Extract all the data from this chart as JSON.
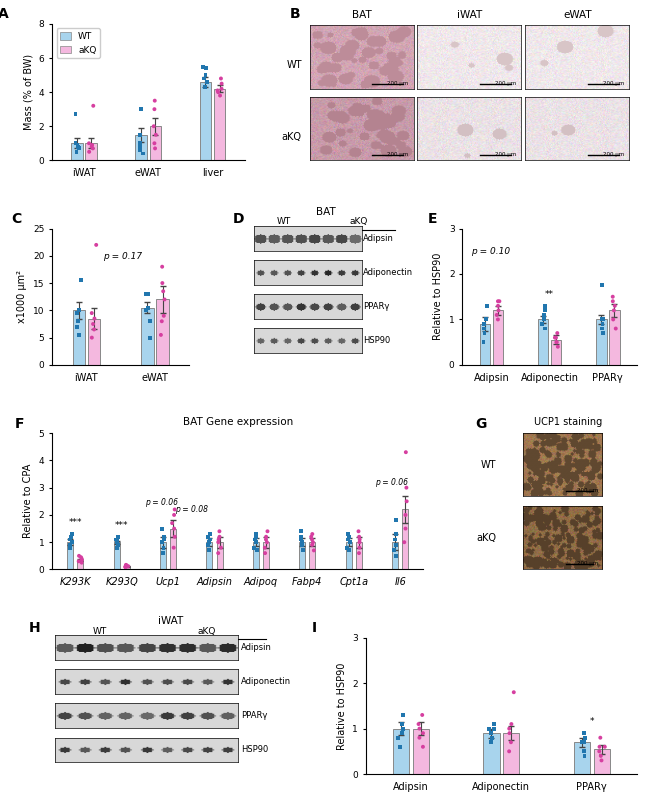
{
  "panel_A": {
    "categories": [
      "iWAT",
      "eWAT",
      "liver"
    ],
    "wt_means": [
      1.0,
      1.5,
      4.6
    ],
    "wt_errs": [
      0.3,
      0.4,
      0.3
    ],
    "aKQ_means": [
      1.0,
      2.0,
      4.2
    ],
    "aKQ_errs": [
      0.3,
      0.5,
      0.2
    ],
    "wt_points": [
      [
        0.5,
        0.7,
        0.8,
        0.9,
        1.0,
        2.7
      ],
      [
        0.4,
        0.6,
        0.8,
        1.0,
        1.5,
        3.0
      ],
      [
        4.3,
        4.6,
        4.8,
        5.0,
        5.4,
        5.5
      ]
    ],
    "aKQ_points": [
      [
        0.5,
        0.7,
        0.8,
        0.9,
        1.0,
        3.2
      ],
      [
        0.7,
        1.0,
        1.5,
        2.0,
        3.0,
        3.5
      ],
      [
        3.8,
        4.0,
        4.1,
        4.2,
        4.5,
        4.8
      ]
    ],
    "ylabel": "Mass (% of BW)",
    "ylim": [
      0,
      8
    ],
    "yticks": [
      0,
      2,
      4,
      6,
      8
    ]
  },
  "panel_C": {
    "categories": [
      "iWAT",
      "eWAT"
    ],
    "wt_means": [
      10.0,
      10.5
    ],
    "wt_errs": [
      1.5,
      1.0
    ],
    "aKQ_means": [
      8.5,
      12.0
    ],
    "aKQ_errs": [
      2.0,
      2.5
    ],
    "wt_points": [
      [
        5.5,
        7.0,
        8.0,
        9.5,
        10.0,
        15.5
      ],
      [
        5.0,
        8.0,
        10.0,
        10.5,
        13.0,
        13.0
      ]
    ],
    "aKQ_points": [
      [
        5.0,
        6.5,
        7.5,
        8.5,
        9.5,
        22.0
      ],
      [
        5.5,
        8.0,
        9.0,
        12.0,
        13.5,
        15.0,
        18.0
      ]
    ],
    "ylabel": "x1000 μm²",
    "ylim": [
      0,
      25
    ],
    "yticks": [
      0,
      5,
      10,
      15,
      20,
      25
    ],
    "p_value": "p = 0.17"
  },
  "panel_E": {
    "categories": [
      "Adipsin",
      "Adiponectin",
      "PPARγ"
    ],
    "wt_means": [
      0.9,
      1.0,
      1.0
    ],
    "wt_errs": [
      0.15,
      0.08,
      0.1
    ],
    "aKQ_means": [
      1.2,
      0.55,
      1.2
    ],
    "aKQ_errs": [
      0.1,
      0.1,
      0.15
    ],
    "wt_points": [
      [
        0.5,
        0.7,
        0.8,
        0.9,
        1.0,
        1.3
      ],
      [
        0.8,
        0.9,
        1.0,
        1.1,
        1.2,
        1.3
      ],
      [
        0.7,
        0.8,
        0.9,
        1.0,
        1.0,
        1.75
      ]
    ],
    "aKQ_points": [
      [
        1.0,
        1.1,
        1.2,
        1.3,
        1.4,
        1.4
      ],
      [
        0.4,
        0.5,
        0.5,
        0.6,
        0.6,
        0.7
      ],
      [
        0.8,
        1.0,
        1.2,
        1.3,
        1.4,
        1.5
      ]
    ],
    "ylabel": "Relative to HSP90",
    "ylim": [
      0,
      3
    ],
    "yticks": [
      0,
      1,
      2,
      3
    ],
    "significance": [
      "",
      "**",
      ""
    ]
  },
  "panel_F": {
    "categories": [
      "K293K",
      "K293Q",
      "Ucp1",
      "Adipsin",
      "Adipoq",
      "Fabp4",
      "Cpt1a",
      "Il6"
    ],
    "wt_means": [
      1.0,
      1.0,
      1.0,
      1.0,
      1.0,
      1.0,
      1.0,
      1.0
    ],
    "wt_errs": [
      0.1,
      0.05,
      0.2,
      0.15,
      0.15,
      0.15,
      0.15,
      0.3
    ],
    "aKQ_means": [
      0.35,
      0.12,
      1.5,
      1.0,
      1.0,
      1.0,
      1.0,
      2.2
    ],
    "aKQ_errs": [
      0.05,
      0.02,
      0.3,
      0.2,
      0.2,
      0.15,
      0.2,
      0.5
    ],
    "wt_points": [
      [
        0.8,
        0.9,
        1.0,
        1.1,
        1.2,
        1.3
      ],
      [
        0.8,
        0.9,
        1.0,
        1.1,
        1.1,
        1.2
      ],
      [
        0.6,
        0.8,
        1.0,
        1.1,
        1.2,
        1.5
      ],
      [
        0.7,
        0.9,
        1.0,
        1.1,
        1.2,
        1.3
      ],
      [
        0.7,
        0.8,
        1.0,
        1.1,
        1.2,
        1.3
      ],
      [
        0.7,
        0.9,
        1.0,
        1.1,
        1.2,
        1.4
      ],
      [
        0.7,
        0.8,
        1.0,
        1.1,
        1.2,
        1.3
      ],
      [
        0.5,
        0.7,
        0.9,
        1.1,
        1.3,
        1.8
      ]
    ],
    "aKQ_points": [
      [
        0.25,
        0.3,
        0.35,
        0.4,
        0.45,
        0.5
      ],
      [
        0.08,
        0.1,
        0.12,
        0.14,
        0.15,
        0.17
      ],
      [
        0.8,
        1.2,
        1.5,
        1.7,
        2.0,
        2.2
      ],
      [
        0.6,
        0.8,
        1.0,
        1.1,
        1.2,
        1.4
      ],
      [
        0.6,
        0.8,
        1.0,
        1.1,
        1.2,
        1.4
      ],
      [
        0.7,
        0.9,
        1.0,
        1.1,
        1.2,
        1.3
      ],
      [
        0.6,
        0.8,
        1.0,
        1.1,
        1.2,
        1.4
      ],
      [
        1.0,
        1.5,
        2.0,
        2.5,
        3.0,
        4.3
      ]
    ],
    "ylabel": "Relative to CPA",
    "title": "BAT Gene expression",
    "ylim": [
      0,
      5
    ],
    "yticks": [
      0,
      1,
      2,
      3,
      4,
      5
    ],
    "significance": [
      "***",
      "***",
      "",
      "",
      "",
      "",
      "",
      ""
    ]
  },
  "panel_I": {
    "categories": [
      "Adipsin",
      "Adiponectin",
      "PPARγ"
    ],
    "wt_means": [
      1.0,
      0.9,
      0.7
    ],
    "wt_errs": [
      0.15,
      0.1,
      0.1
    ],
    "aKQ_means": [
      1.0,
      0.9,
      0.55
    ],
    "aKQ_errs": [
      0.15,
      0.15,
      0.1
    ],
    "wt_points": [
      [
        0.6,
        0.8,
        0.9,
        1.0,
        1.1,
        1.3
      ],
      [
        0.7,
        0.8,
        0.9,
        1.0,
        1.0,
        1.1
      ],
      [
        0.4,
        0.5,
        0.7,
        0.7,
        0.8,
        0.9
      ]
    ],
    "aKQ_points": [
      [
        0.6,
        0.8,
        0.9,
        1.0,
        1.1,
        1.3
      ],
      [
        0.5,
        0.7,
        0.9,
        1.0,
        1.1,
        1.8
      ],
      [
        0.3,
        0.4,
        0.5,
        0.6,
        0.6,
        0.8
      ]
    ],
    "ylabel": "Relative to HSP90",
    "ylim": [
      0,
      3
    ],
    "yticks": [
      0,
      1,
      2,
      3
    ],
    "significance": [
      "",
      "",
      "*"
    ]
  },
  "colors": {
    "wt_bar": "#a8d4ed",
    "aKQ_bar": "#f4b8df",
    "wt_dot": "#2176ae",
    "aKQ_dot": "#d63fa0"
  },
  "wb_labels_D": [
    "Adipsin",
    "Adiponectin",
    "PPARγ",
    "HSP90"
  ],
  "wb_labels_H": [
    "Adipsin",
    "Adiponectin",
    "PPARγ",
    "HSP90"
  ]
}
